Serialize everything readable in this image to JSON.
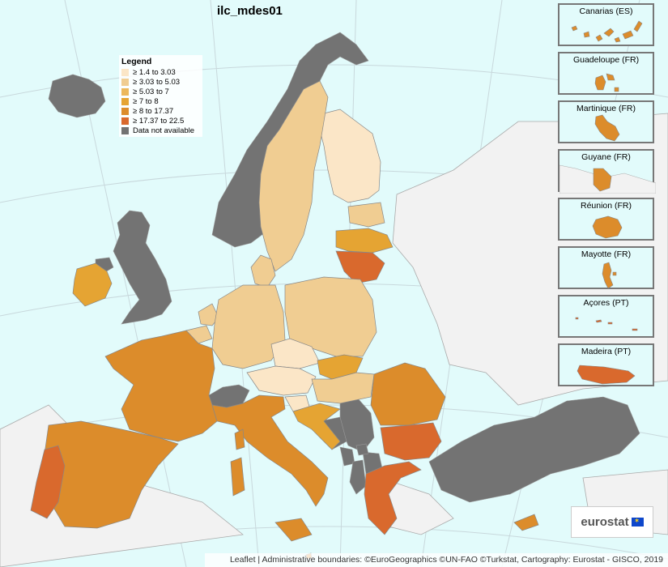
{
  "title": "ilc_mdes01",
  "legend": {
    "title": "Legend",
    "items": [
      {
        "label": "≥ 1.4 to 3.03",
        "color": "#fbe6c7"
      },
      {
        "label": "≥ 3.03 to 5.03",
        "color": "#f0cd92"
      },
      {
        "label": "≥ 5.03 to 7",
        "color": "#ecb85c"
      },
      {
        "label": "≥ 7 to 8",
        "color": "#e5a433"
      },
      {
        "label": "≥ 8 to 17.37",
        "color": "#dc8c2b"
      },
      {
        "label": "≥ 17.37 to 22.5",
        "color": "#d9692d"
      },
      {
        "label": "Data not available",
        "color": "#737373"
      }
    ]
  },
  "insets": [
    {
      "label": "Canarias (ES)",
      "color": "#dc8c2b"
    },
    {
      "label": "Guadeloupe (FR)",
      "color": "#dc8c2b"
    },
    {
      "label": "Martinique (FR)",
      "color": "#dc8c2b"
    },
    {
      "label": "Guyane (FR)",
      "color": "#dc8c2b"
    },
    {
      "label": "Réunion (FR)",
      "color": "#dc8c2b"
    },
    {
      "label": "Mayotte (FR)",
      "color": "#dc8c2b"
    },
    {
      "label": "Açores (PT)",
      "color": "#d9692d"
    },
    {
      "label": "Madeira (PT)",
      "color": "#d9692d"
    }
  ],
  "logo": {
    "text": "eurostat"
  },
  "attribution": "Leaflet | Administrative boundaries: ©EuroGeographics ©UN-FAO ©Turkstat, Cartography: Eurostat - GISCO, 2019",
  "colors": {
    "sea": "#e2fbfb",
    "land_other": "#f2f2f2",
    "border": "#888888"
  }
}
